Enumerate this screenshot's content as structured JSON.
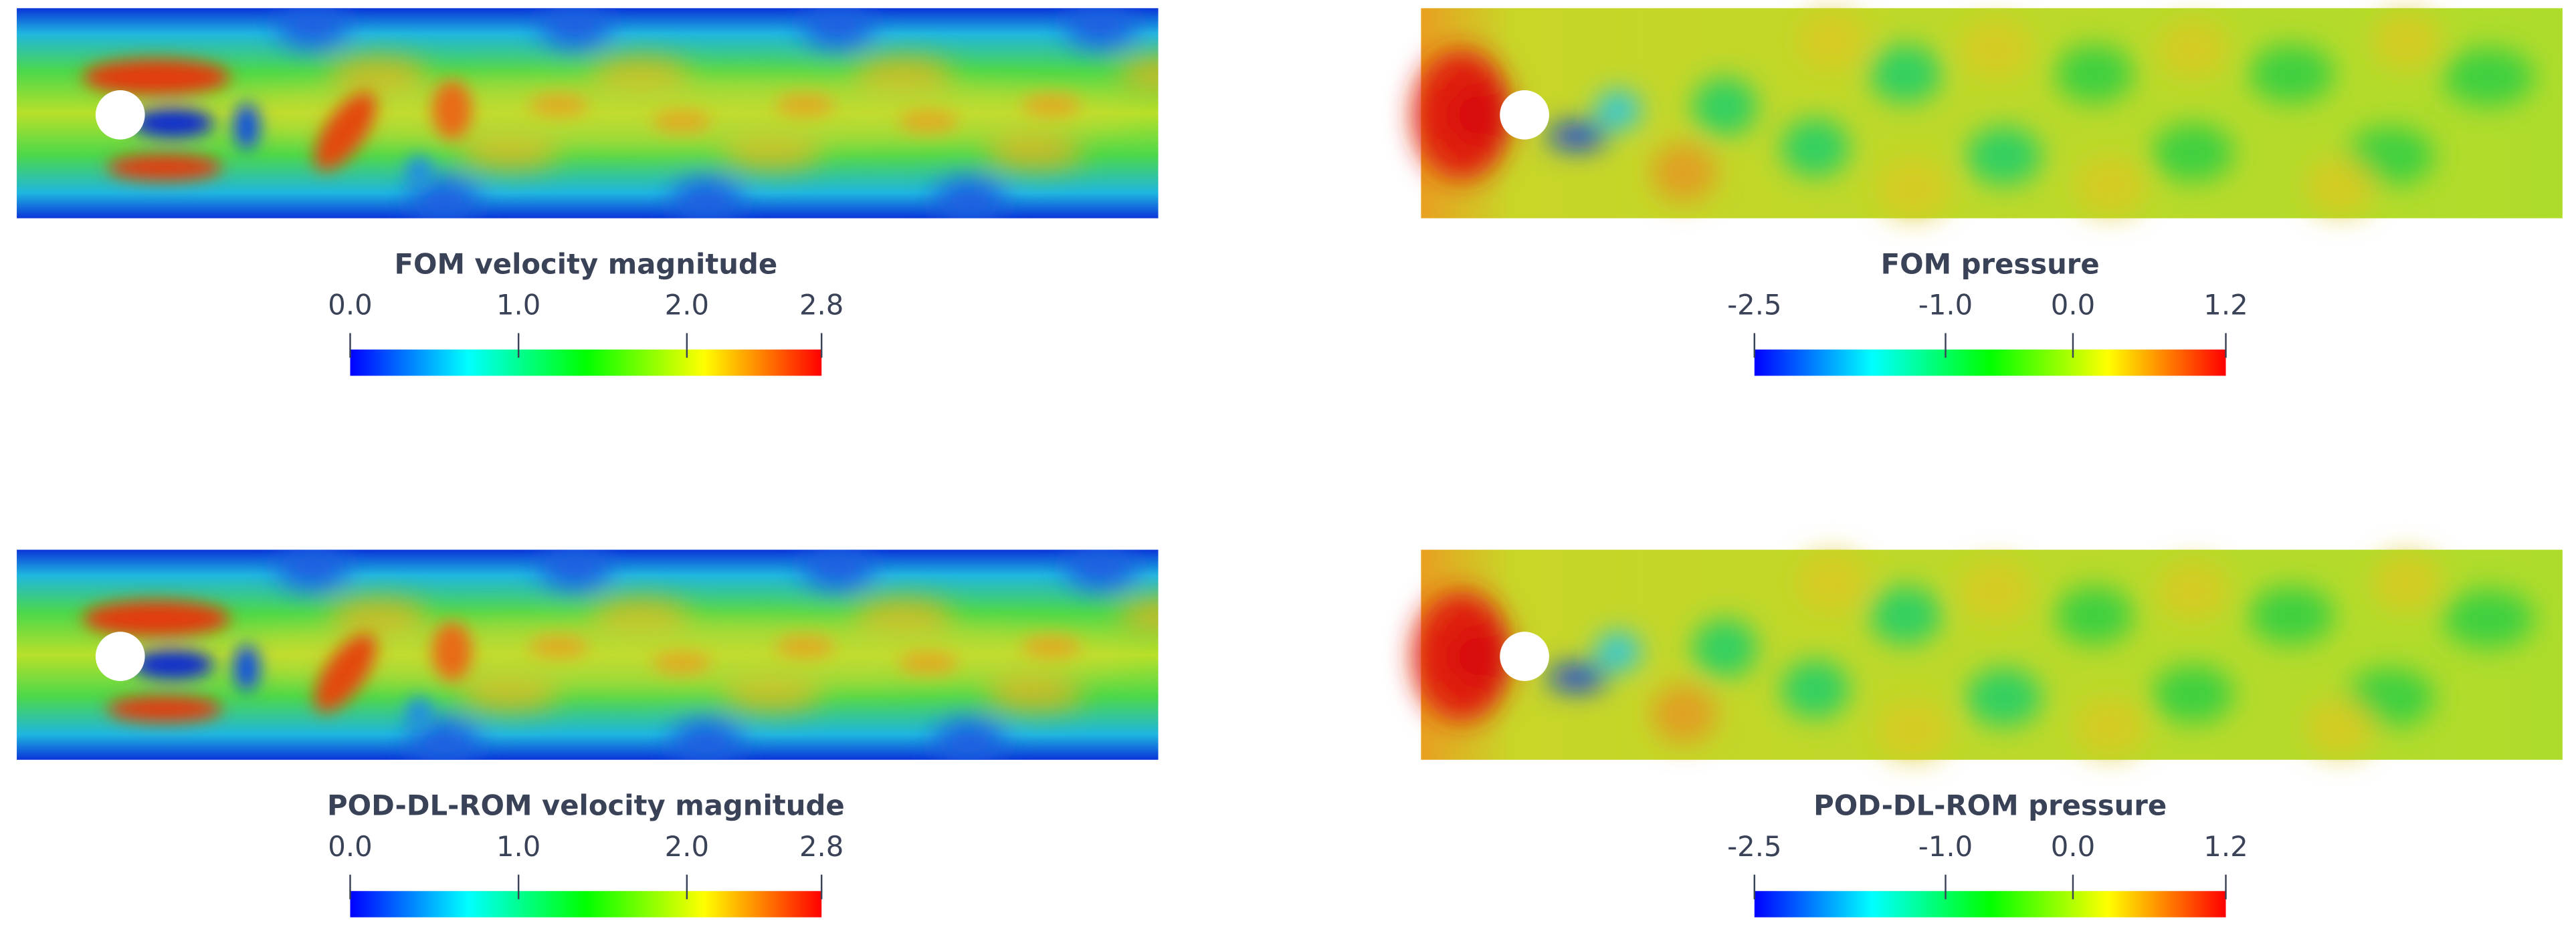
{
  "chart_data": [
    {
      "type": "colorbar",
      "title": "FOM velocity magnitude",
      "xlim": [
        0,
        2.8
      ],
      "xticks": [
        {
          "value": 0,
          "label": "0.0"
        },
        {
          "value": 1,
          "label": "1.0"
        },
        {
          "value": 2,
          "label": "2.0"
        },
        {
          "value": 2.8,
          "label": "2.8"
        }
      ],
      "colormap": [
        "#0000ff",
        "#00ffff",
        "#00ff00",
        "#ffff00",
        "#ff0000"
      ]
    },
    {
      "type": "colorbar",
      "title": "FOM pressure",
      "xlim": [
        -2.5,
        1.2
      ],
      "xticks": [
        {
          "value": -2.5,
          "label": "-2.5"
        },
        {
          "value": -1,
          "label": "-1.0"
        },
        {
          "value": 0,
          "label": "0.0"
        },
        {
          "value": 1.2,
          "label": "1.2"
        }
      ],
      "colormap": [
        "#0000ff",
        "#00ffff",
        "#00ff00",
        "#ffff00",
        "#ff0000"
      ]
    },
    {
      "type": "colorbar",
      "title": "POD-DL-ROM velocity magnitude",
      "xlim": [
        0,
        2.8
      ],
      "xticks": [
        {
          "value": 0,
          "label": "0.0"
        },
        {
          "value": 1,
          "label": "1.0"
        },
        {
          "value": 2,
          "label": "2.0"
        },
        {
          "value": 2.8,
          "label": "2.8"
        }
      ],
      "colormap": [
        "#0000ff",
        "#00ffff",
        "#00ff00",
        "#ffff00",
        "#ff0000"
      ]
    },
    {
      "type": "colorbar",
      "title": "POD-DL-ROM pressure",
      "xlim": [
        -2.5,
        1.2
      ],
      "xticks": [
        {
          "value": -2.5,
          "label": "-2.5"
        },
        {
          "value": -1,
          "label": "-1.0"
        },
        {
          "value": 0,
          "label": "0.0"
        },
        {
          "value": 1.2,
          "label": "1.2"
        }
      ],
      "colormap": [
        "#0000ff",
        "#00ffff",
        "#00ff00",
        "#ffff00",
        "#ff0000"
      ]
    }
  ]
}
